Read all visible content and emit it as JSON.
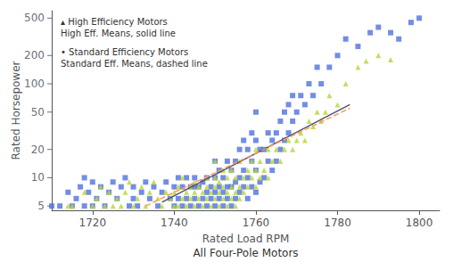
{
  "chart_data": {
    "type": "scatter",
    "xlabel": "Rated Load RPM",
    "ylabel": "Rated Horsepower",
    "annotations": [
      "▴ High Efficiency Motors\nHigh Eff. Means, solid line",
      "• Standard Efficiency Motors\nStandard Eff. Means, dashed line",
      "All Four-Pole Motors"
    ],
    "log": "y",
    "grid": false,
    "xlim": [
      1710,
      1805
    ],
    "ylim": [
      4.5,
      600
    ],
    "xticks": [
      1720,
      1740,
      1760,
      1780,
      1800
    ],
    "yticks": [
      5,
      10,
      20,
      50,
      100,
      200,
      500
    ],
    "series": [
      {
        "type": "scatter",
        "marker": "square",
        "x": [
          1710,
          1712,
          1714,
          1715,
          1716,
          1717,
          1718,
          1718,
          1719,
          1720,
          1720,
          1721,
          1722,
          1723,
          1724,
          1725,
          1726,
          1727,
          1728,
          1729,
          1730,
          1730,
          1731,
          1732,
          1733,
          1734,
          1735,
          1736,
          1737,
          1738,
          1739,
          1740,
          1740,
          1741,
          1741,
          1742,
          1742,
          1743,
          1743,
          1744,
          1744,
          1745,
          1745,
          1745,
          1746,
          1746,
          1747,
          1747,
          1748,
          1748,
          1748,
          1749,
          1749,
          1750,
          1750,
          1750,
          1750,
          1751,
          1751,
          1751,
          1752,
          1752,
          1752,
          1753,
          1753,
          1753,
          1754,
          1754,
          1754,
          1755,
          1755,
          1755,
          1756,
          1756,
          1756,
          1757,
          1757,
          1757,
          1758,
          1758,
          1758,
          1759,
          1759,
          1759,
          1760,
          1760,
          1760,
          1760,
          1761,
          1761,
          1762,
          1762,
          1763,
          1763,
          1764,
          1764,
          1765,
          1765,
          1766,
          1766,
          1767,
          1767,
          1768,
          1768,
          1769,
          1769,
          1770,
          1771,
          1772,
          1773,
          1774,
          1775,
          1776,
          1778,
          1780,
          1782,
          1785,
          1788,
          1790,
          1793,
          1795,
          1798,
          1800
        ],
        "values": [
          5,
          5,
          7,
          5,
          6,
          8,
          10,
          5,
          7,
          9,
          5,
          6,
          8,
          5,
          7,
          9,
          6,
          8,
          10,
          5,
          6,
          8,
          5,
          7,
          9,
          6,
          8,
          5,
          7,
          9,
          6,
          5,
          8,
          6,
          10,
          5,
          8,
          6,
          10,
          5,
          8,
          6,
          8,
          10,
          5,
          8,
          6,
          9,
          5,
          7,
          10,
          6,
          8,
          5,
          7,
          10,
          15,
          6,
          8,
          12,
          5,
          7,
          10,
          6,
          8,
          15,
          5,
          8,
          12,
          6,
          9,
          15,
          7,
          10,
          20,
          8,
          12,
          25,
          6,
          10,
          20,
          8,
          15,
          30,
          7,
          12,
          25,
          50,
          9,
          20,
          10,
          20,
          15,
          30,
          12,
          25,
          15,
          30,
          20,
          40,
          25,
          50,
          30,
          60,
          40,
          75,
          50,
          75,
          60,
          100,
          75,
          150,
          100,
          150,
          200,
          300,
          250,
          350,
          400,
          350,
          300,
          450,
          500
        ]
      },
      {
        "type": "scatter",
        "marker": "triangle",
        "x": [
          1714,
          1715,
          1718,
          1720,
          1721,
          1722,
          1723,
          1724,
          1725,
          1726,
          1727,
          1728,
          1729,
          1730,
          1731,
          1732,
          1733,
          1734,
          1735,
          1736,
          1737,
          1738,
          1739,
          1740,
          1740,
          1741,
          1741,
          1742,
          1742,
          1743,
          1743,
          1744,
          1744,
          1745,
          1745,
          1745,
          1746,
          1746,
          1747,
          1747,
          1748,
          1748,
          1748,
          1749,
          1749,
          1750,
          1750,
          1750,
          1750,
          1751,
          1751,
          1751,
          1752,
          1752,
          1752,
          1753,
          1753,
          1753,
          1754,
          1754,
          1754,
          1755,
          1755,
          1755,
          1756,
          1756,
          1756,
          1757,
          1757,
          1758,
          1758,
          1759,
          1759,
          1760,
          1760,
          1760,
          1761,
          1761,
          1762,
          1763,
          1763,
          1764,
          1765,
          1766,
          1767,
          1768,
          1769,
          1770,
          1771,
          1772,
          1773,
          1774,
          1775,
          1776,
          1777,
          1778,
          1780,
          1782,
          1785,
          1787,
          1790,
          1793
        ],
        "values": [
          5,
          5,
          7,
          5,
          6,
          8,
          5,
          7,
          5,
          6,
          5,
          7,
          9,
          5,
          6,
          8,
          5,
          7,
          9,
          6,
          5,
          7,
          6,
          5,
          7,
          5,
          8,
          6,
          10,
          5,
          7,
          6,
          8,
          5,
          7,
          9,
          6,
          8,
          5,
          7,
          6,
          8,
          10,
          5,
          7,
          6,
          8,
          10,
          15,
          5,
          7,
          9,
          6,
          8,
          12,
          5,
          7,
          10,
          6,
          8,
          12,
          5,
          7,
          10,
          6,
          8,
          15,
          7,
          10,
          8,
          12,
          10,
          15,
          8,
          12,
          20,
          10,
          15,
          12,
          10,
          20,
          15,
          20,
          15,
          20,
          25,
          20,
          25,
          30,
          25,
          40,
          35,
          50,
          40,
          50,
          75,
          60,
          100,
          150,
          175,
          200,
          180
        ]
      },
      {
        "type": "line",
        "line_style": "solid",
        "x": [
          1737,
          1783
        ],
        "values": [
          5.5,
          60
        ]
      },
      {
        "type": "line",
        "line_style": "dashed",
        "x": [
          1733,
          1783
        ],
        "values": [
          5.0,
          55
        ]
      }
    ]
  }
}
